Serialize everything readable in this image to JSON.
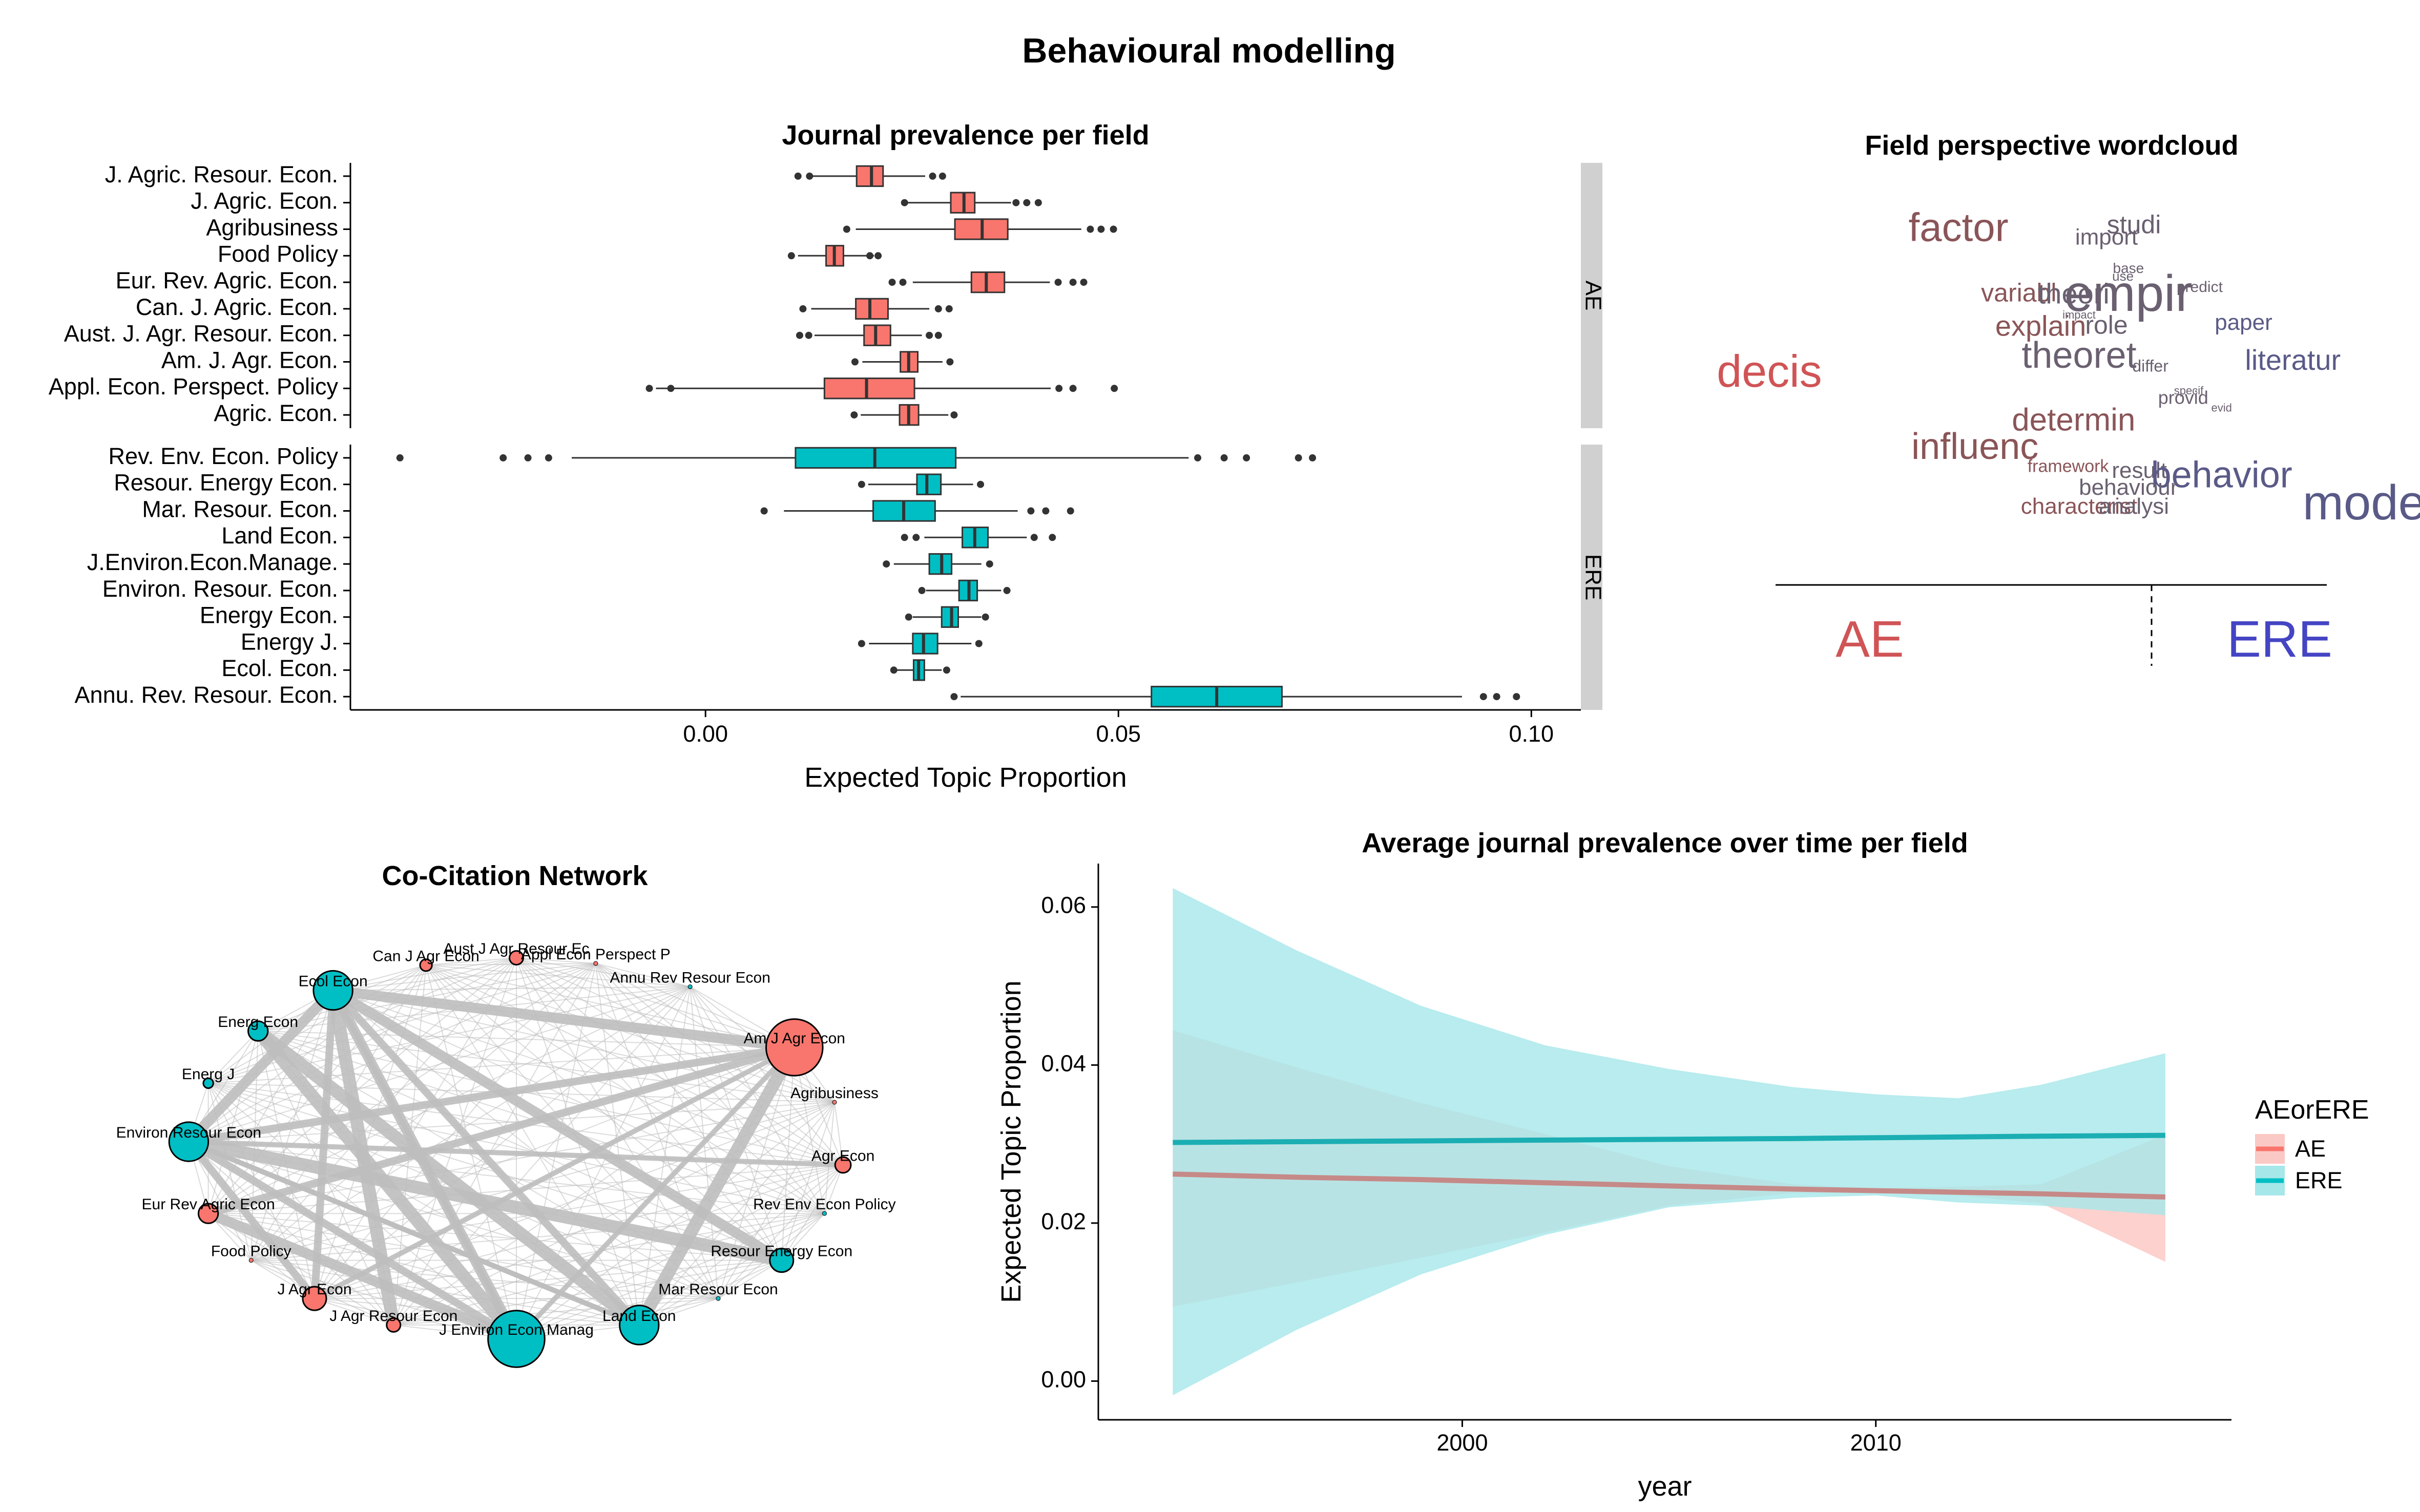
{
  "page": {
    "title": "Behavioural modelling"
  },
  "colors": {
    "AE": "#F8766D",
    "ERE": "#00BFC4",
    "AE_band": "#FBC9C5",
    "ERE_band": "#A6E7EA",
    "overlap": "#B5C2C2",
    "AE_line": "#C58A88",
    "ERE_line": "#1BAEB3",
    "edge": "#BEBEBE",
    "strip": "#D0D0D0",
    "text": "#000000",
    "wc_AE": "#D05456",
    "wc_ERE": "#4444C4"
  },
  "chart_data": [
    {
      "id": "journal-prevalence",
      "type": "boxplot",
      "title": "Journal prevalence per field",
      "xlabel": "Expected Topic Proportion",
      "ylabel": "",
      "xlim": [
        -0.043,
        0.106
      ],
      "xticks": [
        0.0,
        0.05,
        0.1
      ],
      "xtick_labels": [
        "0.00",
        "0.05",
        "0.10"
      ],
      "facets": [
        {
          "label": "AE",
          "color_key": "AE",
          "journals": [
            {
              "name": "J. Agric. Resour. Econ.",
              "min": 0.0128,
              "q1": 0.0183,
              "med": 0.0201,
              "q3": 0.0215,
              "max": 0.0266,
              "outliers": [
                0.0112,
                0.0126,
                0.0275,
                0.0287
              ]
            },
            {
              "name": "J. Agric. Econ.",
              "min": 0.0238,
              "q1": 0.0297,
              "med": 0.0313,
              "q3": 0.0326,
              "max": 0.037,
              "outliers": [
                0.0241,
                0.0376,
                0.0389,
                0.0403
              ]
            },
            {
              "name": "Agribusiness",
              "min": 0.0182,
              "q1": 0.0302,
              "med": 0.0335,
              "q3": 0.0366,
              "max": 0.0455,
              "outliers": [
                0.0171,
                0.0466,
                0.0479,
                0.0494
              ]
            },
            {
              "name": "Food Policy",
              "min": 0.0112,
              "q1": 0.0146,
              "med": 0.0156,
              "q3": 0.0167,
              "max": 0.0204,
              "outliers": [
                0.0104,
                0.0199,
                0.0209
              ]
            },
            {
              "name": "Eur. Rev. Agric. Econ.",
              "min": 0.0251,
              "q1": 0.0322,
              "med": 0.034,
              "q3": 0.0362,
              "max": 0.0417,
              "outliers": [
                0.0226,
                0.0239,
                0.0427,
                0.0445,
                0.0458
              ]
            },
            {
              "name": "Can. J. Agric. Econ.",
              "min": 0.0128,
              "q1": 0.0182,
              "med": 0.0199,
              "q3": 0.0221,
              "max": 0.0271,
              "outliers": [
                0.0118,
                0.0282,
                0.0295
              ]
            },
            {
              "name": "Aust. J. Agr. Resour. Econ.",
              "min": 0.0132,
              "q1": 0.0192,
              "med": 0.0206,
              "q3": 0.0224,
              "max": 0.0262,
              "outliers": [
                0.0114,
                0.0125,
                0.0271,
                0.0282
              ]
            },
            {
              "name": "Am. J. Agr. Econ.",
              "min": 0.019,
              "q1": 0.0236,
              "med": 0.0246,
              "q3": 0.0257,
              "max": 0.0287,
              "outliers": [
                0.0181,
                0.0296
              ]
            },
            {
              "name": "Appl. Econ. Perspect. Policy",
              "min": -0.006,
              "q1": 0.0144,
              "med": 0.0195,
              "q3": 0.0253,
              "max": 0.0418,
              "outliers": [
                -0.0068,
                -0.0042,
                0.0428,
                0.0445,
                0.0495
              ]
            },
            {
              "name": "Agric. Econ.",
              "min": 0.0188,
              "q1": 0.0235,
              "med": 0.0246,
              "q3": 0.0258,
              "max": 0.0294,
              "outliers": [
                0.018,
                0.0301
              ]
            }
          ]
        },
        {
          "label": "ERE",
          "color_key": "ERE",
          "journals": [
            {
              "name": "Rev. Env. Econ. Policy",
              "min": -0.0162,
              "q1": 0.0109,
              "med": 0.0205,
              "q3": 0.0303,
              "max": 0.0585,
              "outliers": [
                -0.037,
                -0.0245,
                -0.0215,
                -0.019,
                0.0596,
                0.0628,
                0.0655,
                0.0718,
                0.0735
              ]
            },
            {
              "name": "Resour. Energy Econ.",
              "min": 0.0197,
              "q1": 0.0256,
              "med": 0.0268,
              "q3": 0.0285,
              "max": 0.0324,
              "outliers": [
                0.0189,
                0.0333
              ]
            },
            {
              "name": "Mar. Resour. Econ.",
              "min": 0.0095,
              "q1": 0.0203,
              "med": 0.024,
              "q3": 0.0278,
              "max": 0.0378,
              "outliers": [
                0.0071,
                0.0394,
                0.0412,
                0.0442
              ]
            },
            {
              "name": "Land Econ.",
              "min": 0.0265,
              "q1": 0.0311,
              "med": 0.0326,
              "q3": 0.0342,
              "max": 0.0389,
              "outliers": [
                0.0241,
                0.0255,
                0.0398,
                0.042
              ]
            },
            {
              "name": "J.Environ.Econ.Manage.",
              "min": 0.0228,
              "q1": 0.0271,
              "med": 0.0286,
              "q3": 0.0298,
              "max": 0.0334,
              "outliers": [
                0.0219,
                0.0344
              ]
            },
            {
              "name": "Environ. Resour. Econ.",
              "min": 0.0267,
              "q1": 0.0307,
              "med": 0.0319,
              "q3": 0.0329,
              "max": 0.0358,
              "outliers": [
                0.0262,
                0.0365
              ]
            },
            {
              "name": "Energy Econ.",
              "min": 0.0251,
              "q1": 0.0286,
              "med": 0.0298,
              "q3": 0.0306,
              "max": 0.0334,
              "outliers": [
                0.0246,
                0.0339
              ]
            },
            {
              "name": "Energy J.",
              "min": 0.0198,
              "q1": 0.0251,
              "med": 0.0264,
              "q3": 0.0281,
              "max": 0.0322,
              "outliers": [
                0.0189,
                0.0331
              ]
            },
            {
              "name": "Ecol. Econ.",
              "min": 0.0232,
              "q1": 0.0252,
              "med": 0.0258,
              "q3": 0.0265,
              "max": 0.0286,
              "outliers": [
                0.0228,
                0.0292
              ]
            },
            {
              "name": "Annu. Rev. Resour. Econ.",
              "min": 0.0309,
              "q1": 0.054,
              "med": 0.0619,
              "q3": 0.0698,
              "max": 0.0916,
              "outliers": [
                0.0301,
                0.0942,
                0.0958,
                0.0982
              ]
            }
          ]
        }
      ]
    },
    {
      "id": "field-wordcloud",
      "type": "wordcloud",
      "title": "Field perspective wordcloud",
      "axis_labels": {
        "left": "AE",
        "right": "ERE"
      },
      "words": [
        {
          "text": "factor",
          "x": 0.33,
          "y": 0.905,
          "size": 78,
          "color": "#8A5558"
        },
        {
          "text": "studi",
          "x": 0.65,
          "y": 0.925,
          "size": 50,
          "color": "#6A6070"
        },
        {
          "text": "import",
          "x": 0.6,
          "y": 0.895,
          "size": 44,
          "color": "#6A6070"
        },
        {
          "text": "base",
          "x": 0.64,
          "y": 0.82,
          "size": 28,
          "color": "#6A6070"
        },
        {
          "text": "use",
          "x": 0.63,
          "y": 0.8,
          "size": 26,
          "color": "#6A6070"
        },
        {
          "text": "predict",
          "x": 0.77,
          "y": 0.77,
          "size": 30,
          "color": "#6A6070"
        },
        {
          "text": "variabl",
          "x": 0.44,
          "y": 0.745,
          "size": 50,
          "color": "#8A5558"
        },
        {
          "text": "theori",
          "x": 0.54,
          "y": 0.74,
          "size": 56,
          "color": "#6A6070"
        },
        {
          "text": "empir",
          "x": 0.64,
          "y": 0.72,
          "size": 100,
          "color": "#6A6070"
        },
        {
          "text": "paper",
          "x": 0.85,
          "y": 0.67,
          "size": 44,
          "color": "#5A5A88"
        },
        {
          "text": "explain",
          "x": 0.48,
          "y": 0.655,
          "size": 56,
          "color": "#8A5558"
        },
        {
          "text": "role",
          "x": 0.6,
          "y": 0.66,
          "size": 50,
          "color": "#6A6070"
        },
        {
          "text": "impact",
          "x": 0.55,
          "y": 0.7,
          "size": 22,
          "color": "#6A6070"
        },
        {
          "text": "literatur",
          "x": 0.94,
          "y": 0.565,
          "size": 56,
          "color": "#5A5A88"
        },
        {
          "text": "theoret",
          "x": 0.55,
          "y": 0.57,
          "size": 72,
          "color": "#6A6070"
        },
        {
          "text": "decis",
          "x": -0.015,
          "y": 0.52,
          "size": 88,
          "color": "#D05456"
        },
        {
          "text": "differ",
          "x": 0.68,
          "y": 0.56,
          "size": 32,
          "color": "#6A6070"
        },
        {
          "text": "specif",
          "x": 0.75,
          "y": 0.5,
          "size": 22,
          "color": "#6A6070"
        },
        {
          "text": "provid",
          "x": 0.74,
          "y": 0.475,
          "size": 36,
          "color": "#6A6070"
        },
        {
          "text": "evid",
          "x": 0.81,
          "y": 0.455,
          "size": 22,
          "color": "#6A6070"
        },
        {
          "text": "determin",
          "x": 0.54,
          "y": 0.405,
          "size": 62,
          "color": "#8A5558"
        },
        {
          "text": "influenc",
          "x": 0.36,
          "y": 0.33,
          "size": 72,
          "color": "#8A5558"
        },
        {
          "text": "framework",
          "x": 0.53,
          "y": 0.295,
          "size": 34,
          "color": "#8A5558"
        },
        {
          "text": "result",
          "x": 0.66,
          "y": 0.28,
          "size": 44,
          "color": "#6A6070"
        },
        {
          "text": "behavior",
          "x": 0.81,
          "y": 0.255,
          "size": 72,
          "color": "#5A5A88"
        },
        {
          "text": "behaviour",
          "x": 0.64,
          "y": 0.235,
          "size": 44,
          "color": "#6A6070"
        },
        {
          "text": "characterist",
          "x": 0.55,
          "y": 0.185,
          "size": 44,
          "color": "#8A5558"
        },
        {
          "text": "analysi",
          "x": 0.65,
          "y": 0.185,
          "size": 44,
          "color": "#6A6070"
        },
        {
          "text": "model",
          "x": 1.08,
          "y": 0.17,
          "size": 96,
          "color": "#5A5A88"
        }
      ]
    },
    {
      "id": "co-citation-network",
      "type": "network",
      "title": "Co-Citation Network",
      "nodes": [
        {
          "label": "Aust J Agr Resour Ec",
          "angle": 90,
          "size": 1.0,
          "field": "AE"
        },
        {
          "label": "Appl Econ Perspect P",
          "angle": 76,
          "size": 0,
          "field": "AE"
        },
        {
          "label": "Annu Rev Resour Econ",
          "angle": 58,
          "size": 0,
          "field": "ERE"
        },
        {
          "label": "Am J Agr Econ",
          "angle": 32,
          "size": 5.4,
          "field": "AE"
        },
        {
          "label": "Agribusiness",
          "angle": 14,
          "size": 0,
          "field": "AE"
        },
        {
          "label": "Agr Econ",
          "angle": -5,
          "size": 1.2,
          "field": "AE"
        },
        {
          "label": "Rev Env Econ Policy",
          "angle": -20,
          "size": 0,
          "field": "ERE"
        },
        {
          "label": "Resour Energy Econ",
          "angle": -36,
          "size": 2.0,
          "field": "ERE"
        },
        {
          "label": "Mar Resour Econ",
          "angle": -52,
          "size": 0,
          "field": "ERE"
        },
        {
          "label": "Land Econ",
          "angle": -68,
          "size": 3.6,
          "field": "ERE"
        },
        {
          "label": "J Environ Econ Manag",
          "angle": -90,
          "size": 5.4,
          "field": "ERE"
        },
        {
          "label": "J Agr Resour Econ",
          "angle": -112,
          "size": 1.0,
          "field": "AE"
        },
        {
          "label": "J Agr Econ",
          "angle": -128,
          "size": 2.0,
          "field": "AE"
        },
        {
          "label": "Food Policy",
          "angle": -144,
          "size": 0,
          "field": "AE"
        },
        {
          "label": "Eur Rev Agric Econ",
          "angle": -160,
          "size": 1.6,
          "field": "AE"
        },
        {
          "label": "Environ Resour Econ",
          "angle": 178,
          "size": 3.6,
          "field": "ERE"
        },
        {
          "label": "Energ J",
          "angle": 160,
          "size": 0.6,
          "field": "ERE"
        },
        {
          "label": "Energ Econ",
          "angle": 142,
          "size": 1.6,
          "field": "ERE"
        },
        {
          "label": "Ecol Econ",
          "angle": 124,
          "size": 3.6,
          "field": "ERE"
        },
        {
          "label": "Can J Agr Econ",
          "angle": 106,
          "size": 0.8,
          "field": "AE"
        }
      ],
      "strong_edges": [
        [
          3,
          10
        ],
        [
          3,
          15
        ],
        [
          3,
          18
        ],
        [
          3,
          9
        ],
        [
          3,
          12
        ],
        [
          10,
          15
        ],
        [
          10,
          18
        ],
        [
          10,
          17
        ],
        [
          9,
          15
        ],
        [
          9,
          18
        ],
        [
          15,
          18
        ],
        [
          15,
          7
        ],
        [
          18,
          10
        ],
        [
          12,
          18
        ],
        [
          14,
          10
        ],
        [
          11,
          18
        ],
        [
          5,
          15
        ],
        [
          3,
          14
        ],
        [
          7,
          18
        ],
        [
          17,
          9
        ],
        [
          15,
          9
        ],
        [
          12,
          15
        ]
      ]
    },
    {
      "id": "prevalence-over-time",
      "type": "area",
      "title": "Average journal prevalence over time per field",
      "xlabel": "year",
      "ylabel": "Expected Topic Proportion",
      "xlim": [
        1991.2,
        2018.6
      ],
      "ylim": [
        -0.0049,
        0.0655
      ],
      "xticks": [
        2000,
        2010
      ],
      "yticks": [
        0.0,
        0.02,
        0.04,
        0.06
      ],
      "ytick_labels": [
        "0.00",
        "0.02",
        "0.04",
        "0.06"
      ],
      "x": [
        1993,
        1996,
        1999,
        2002,
        2005,
        2008,
        2010,
        2012,
        2014,
        2017
      ],
      "legend": {
        "title": "AEorERE",
        "position": "right"
      },
      "series": [
        {
          "name": "AE",
          "color_key": "AE",
          "values": [
            0.0262,
            0.0258,
            0.0255,
            0.0251,
            0.0247,
            0.0243,
            0.0241,
            0.0239,
            0.0237,
            0.0233
          ],
          "lower": [
            0.0094,
            0.0125,
            0.0156,
            0.0188,
            0.0222,
            0.0238,
            0.0238,
            0.0235,
            0.0225,
            0.0151
          ],
          "upper": [
            0.0444,
            0.0397,
            0.0352,
            0.0313,
            0.0272,
            0.0249,
            0.0244,
            0.0246,
            0.0249,
            0.0312
          ]
        },
        {
          "name": "ERE",
          "color_key": "ERE",
          "values": [
            0.0302,
            0.0303,
            0.0304,
            0.0305,
            0.0306,
            0.0307,
            0.0308,
            0.0309,
            0.031,
            0.0311
          ],
          "lower": [
            -0.0018,
            0.0065,
            0.0135,
            0.0185,
            0.022,
            0.0232,
            0.0235,
            0.0226,
            0.0222,
            0.021
          ],
          "upper": [
            0.0624,
            0.0545,
            0.0475,
            0.0425,
            0.0395,
            0.0372,
            0.0363,
            0.0358,
            0.0375,
            0.0415
          ]
        }
      ]
    }
  ]
}
